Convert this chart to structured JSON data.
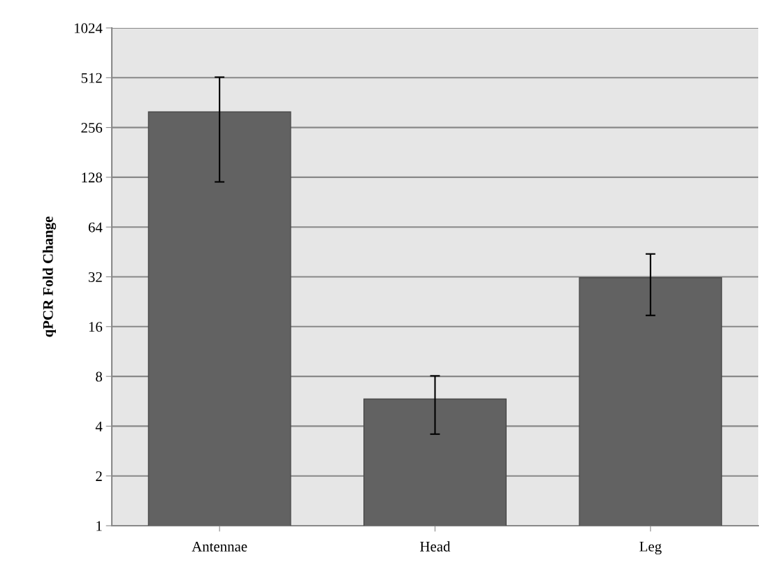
{
  "chart_data": {
    "type": "bar",
    "ylabel": "qPCR Fold Change",
    "categories": [
      "Antennae",
      "Head",
      "Leg"
    ],
    "values": [
      318,
      5.84,
      31.6
    ],
    "errors": [
      [
        120,
        516
      ],
      [
        3.58,
        8.06
      ],
      [
        18.7,
        44
      ]
    ],
    "color": "#626262",
    "log": true,
    "ylim": [
      1,
      1024
    ],
    "yticks": [
      1,
      2,
      4,
      8,
      16,
      32,
      64,
      128,
      256,
      512,
      1024
    ],
    "grid": "y"
  }
}
